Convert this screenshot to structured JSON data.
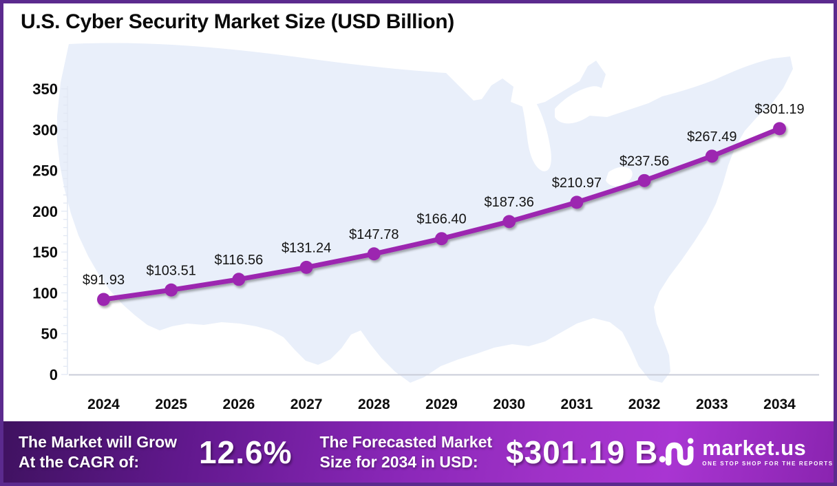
{
  "chart_data": {
    "type": "line",
    "title": "U.S. Cyber Security Market Size (USD Billion)",
    "categories": [
      "2024",
      "2025",
      "2026",
      "2027",
      "2028",
      "2029",
      "2030",
      "2031",
      "2032",
      "2033",
      "2034"
    ],
    "values": [
      91.93,
      103.51,
      116.56,
      131.24,
      147.78,
      166.4,
      187.36,
      210.97,
      237.56,
      267.49,
      301.19
    ],
    "point_labels": [
      "$91.93",
      "$103.51",
      "$116.56",
      "$131.24",
      "$147.78",
      "$166.40",
      "$187.36",
      "$210.97",
      "$237.56",
      "$267.49",
      "$301.19"
    ],
    "xlabel": "",
    "ylabel": "",
    "ylim": [
      0,
      350
    ],
    "yticks": [
      0,
      50,
      100,
      150,
      200,
      250,
      300,
      350
    ],
    "grid": false,
    "legend": "none",
    "line_color": "#9C27B0",
    "background": "usa-map-silhouette"
  },
  "banner": {
    "cagr_label_line1": "The Market will Grow",
    "cagr_label_line2": "At the CAGR of:",
    "cagr_value": "12.6%",
    "forecast_label_line1": "The Forecasted Market",
    "forecast_label_line2": "Size for 2034 in USD:",
    "forecast_value": "$301.19 B",
    "logo_text": "market.us",
    "logo_tagline": "ONE STOP SHOP FOR THE REPORTS"
  },
  "colors": {
    "line": "#9C27B0",
    "frame_border": "#5B2A8E",
    "map_fill": "#E9EFFA",
    "axis_line": "#C9CCD8",
    "tick_line": "#E2E8F4"
  }
}
